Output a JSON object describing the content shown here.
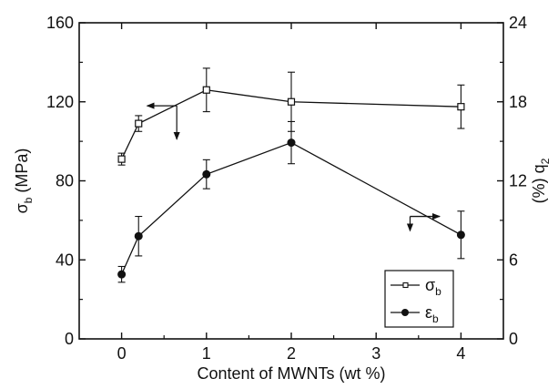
{
  "chart_data": {
    "type": "line",
    "xlabel": "Content of MWNTs (wt %)",
    "ylabel_left": {
      "symbol": "σ",
      "sub": "b",
      "unit": " (MPa)"
    },
    "ylabel_right": {
      "prefix": "(%) ",
      "symbol": "q",
      "sub": "2"
    },
    "xlim": [
      -0.5,
      4.5
    ],
    "ylim_left": [
      0,
      160
    ],
    "ylim_right": [
      0,
      24
    ],
    "x_ticks": [
      0,
      1,
      2,
      3,
      4
    ],
    "x_tick_labels": [
      "0",
      "1",
      "2",
      "3",
      "4"
    ],
    "y_left_ticks": [
      0,
      40,
      80,
      120,
      160
    ],
    "y_left_tick_labels": [
      "0",
      "40",
      "80",
      "120",
      "160"
    ],
    "y_right_ticks": [
      0,
      6,
      12,
      18,
      24
    ],
    "y_right_tick_labels": [
      "0",
      "6",
      "12",
      "18",
      "24"
    ],
    "legend_position": "bottom-right",
    "series": [
      {
        "name": "σb",
        "label": {
          "symbol": "σ",
          "sub": "b"
        },
        "axis": "left",
        "marker": "open-square",
        "x": [
          0,
          0.2,
          1,
          2,
          4
        ],
        "y": [
          91,
          109,
          126,
          120,
          117.5
        ],
        "err": [
          3,
          4,
          11,
          15,
          11
        ],
        "axis_arrow": {
          "from": [
            0.65,
            118
          ],
          "to": [
            0.3,
            118
          ],
          "tail": [
            0.65,
            101
          ]
        }
      },
      {
        "name": "εb",
        "label": {
          "symbol": "ε",
          "sub": "b"
        },
        "axis": "right",
        "marker": "filled-circle",
        "x": [
          0,
          0.2,
          1,
          2,
          4
        ],
        "y": [
          4.9,
          7.8,
          12.5,
          14.9,
          7.9
        ],
        "err": [
          0.6,
          1.5,
          1.1,
          1.6,
          1.8
        ],
        "axis_arrow": {
          "from": [
            3.4,
            9.3
          ],
          "to": [
            3.75,
            9.3
          ],
          "tail": [
            3.4,
            8.2
          ]
        }
      }
    ]
  }
}
